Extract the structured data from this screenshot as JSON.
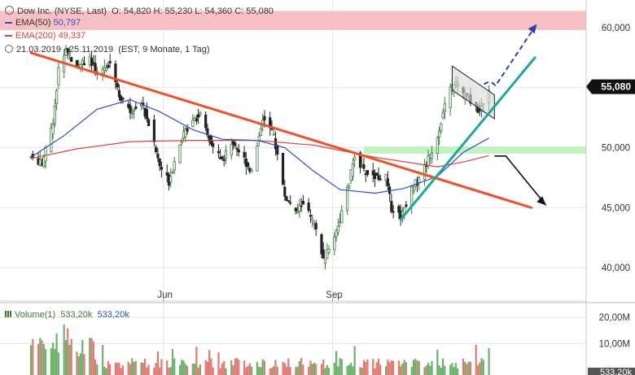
{
  "header": {
    "instrument": "Dow Inc. (NYSE, Last)",
    "ohlc": "O: 54,820  H: 55,230  L: 54,360  C: 55,080",
    "ema50_label": "EMA(50)",
    "ema50_value": "50,797",
    "ema200_label": "EMA(200)",
    "ema200_value": "49,337",
    "period": "21.03.2019 - 25.11.2019",
    "period_info": "(EST, 9 Monate, 1 Tag)"
  },
  "volume_panel": {
    "label": "Volume(1)",
    "value_green": "533,20k",
    "value_blue": "533,20k",
    "last_tag": "533,20k"
  },
  "colors": {
    "up": "#3a7d3a",
    "down": "#222222",
    "ema50": "#2a4fd6",
    "ema200": "#e0403a",
    "resistance_zone": "#f8b9bd",
    "support_zone": "#b8f2b8",
    "downtrend": "#f0502a",
    "uptrend": "#1fa89a",
    "price_tag": "#111111",
    "volume_up": "#e07a72",
    "volume_down": "#6cb26c",
    "arrow_bullish": "#2a3fb8",
    "arrow_bearish": "#111111"
  },
  "chart_data": {
    "type": "candlestick",
    "title": "Dow Inc. (NYSE, Last)",
    "x_range": [
      "2019-03-21",
      "2019-11-25"
    ],
    "x_ticks": [
      "Jun",
      "Sep"
    ],
    "y_range": [
      37.5,
      62.0
    ],
    "y_ticks": [
      "40,000",
      "45,000",
      "50,000",
      "55,000",
      "60,000"
    ],
    "y_tick_values": [
      40,
      45,
      50,
      55,
      60
    ],
    "last_price_label": "55,080",
    "last_price": 55.08,
    "volume_ticks": [
      "10,00M",
      "20,00M"
    ],
    "volume_tick_values": [
      10,
      20
    ],
    "price_series_points": [
      {
        "x": "2019-03-21",
        "y": 49.2
      },
      {
        "x": "2019-03-27",
        "y": 48.6
      },
      {
        "x": "2019-04-02",
        "y": 52.0
      },
      {
        "x": "2019-04-05",
        "y": 56.5
      },
      {
        "x": "2019-04-09",
        "y": 58.2
      },
      {
        "x": "2019-04-15",
        "y": 56.8
      },
      {
        "x": "2019-04-22",
        "y": 57.5
      },
      {
        "x": "2019-04-26",
        "y": 56.0
      },
      {
        "x": "2019-05-03",
        "y": 57.2
      },
      {
        "x": "2019-05-09",
        "y": 54.0
      },
      {
        "x": "2019-05-14",
        "y": 53.0
      },
      {
        "x": "2019-05-20",
        "y": 53.8
      },
      {
        "x": "2019-05-24",
        "y": 52.0
      },
      {
        "x": "2019-05-30",
        "y": 48.5
      },
      {
        "x": "2019-06-04",
        "y": 47.2
      },
      {
        "x": "2019-06-10",
        "y": 50.5
      },
      {
        "x": "2019-06-17",
        "y": 52.5
      },
      {
        "x": "2019-06-21",
        "y": 52.6
      },
      {
        "x": "2019-06-27",
        "y": 50.2
      },
      {
        "x": "2019-07-03",
        "y": 49.0
      },
      {
        "x": "2019-07-09",
        "y": 50.5
      },
      {
        "x": "2019-07-15",
        "y": 49.0
      },
      {
        "x": "2019-07-19",
        "y": 48.0
      },
      {
        "x": "2019-07-25",
        "y": 52.5
      },
      {
        "x": "2019-07-31",
        "y": 51.0
      },
      {
        "x": "2019-08-06",
        "y": 46.0
      },
      {
        "x": "2019-08-12",
        "y": 44.5
      },
      {
        "x": "2019-08-16",
        "y": 45.5
      },
      {
        "x": "2019-08-22",
        "y": 43.5
      },
      {
        "x": "2019-08-27",
        "y": 40.6
      },
      {
        "x": "2019-08-30",
        "y": 41.5
      },
      {
        "x": "2019-09-05",
        "y": 44.0
      },
      {
        "x": "2019-09-10",
        "y": 47.0
      },
      {
        "x": "2019-09-13",
        "y": 49.5
      },
      {
        "x": "2019-09-18",
        "y": 48.0
      },
      {
        "x": "2019-09-24",
        "y": 47.6
      },
      {
        "x": "2019-09-30",
        "y": 47.5
      },
      {
        "x": "2019-10-03",
        "y": 45.0
      },
      {
        "x": "2019-10-08",
        "y": 44.3
      },
      {
        "x": "2019-10-14",
        "y": 46.5
      },
      {
        "x": "2019-10-18",
        "y": 47.5
      },
      {
        "x": "2019-10-23",
        "y": 49.0
      },
      {
        "x": "2019-10-28",
        "y": 51.0
      },
      {
        "x": "2019-11-01",
        "y": 53.5
      },
      {
        "x": "2019-11-06",
        "y": 55.5
      },
      {
        "x": "2019-11-11",
        "y": 54.5
      },
      {
        "x": "2019-11-15",
        "y": 54.0
      },
      {
        "x": "2019-11-20",
        "y": 53.0
      },
      {
        "x": "2019-11-25",
        "y": 55.08
      }
    ],
    "ema50_points": [
      {
        "x": "2019-03-21",
        "y": 49.2
      },
      {
        "x": "2019-04-08",
        "y": 51.0
      },
      {
        "x": "2019-04-26",
        "y": 53.2
      },
      {
        "x": "2019-05-14",
        "y": 54.0
      },
      {
        "x": "2019-05-30",
        "y": 53.0
      },
      {
        "x": "2019-06-17",
        "y": 51.5
      },
      {
        "x": "2019-07-03",
        "y": 50.7
      },
      {
        "x": "2019-07-22",
        "y": 50.6
      },
      {
        "x": "2019-08-06",
        "y": 50.0
      },
      {
        "x": "2019-08-22",
        "y": 48.0
      },
      {
        "x": "2019-09-05",
        "y": 46.5
      },
      {
        "x": "2019-09-24",
        "y": 46.2
      },
      {
        "x": "2019-10-10",
        "y": 46.6
      },
      {
        "x": "2019-10-28",
        "y": 47.6
      },
      {
        "x": "2019-11-11",
        "y": 49.6
      },
      {
        "x": "2019-11-25",
        "y": 50.797
      }
    ],
    "ema200_points": [
      {
        "x": "2019-03-21",
        "y": 49.1
      },
      {
        "x": "2019-04-15",
        "y": 49.9
      },
      {
        "x": "2019-05-14",
        "y": 50.5
      },
      {
        "x": "2019-06-17",
        "y": 50.6
      },
      {
        "x": "2019-07-22",
        "y": 50.6
      },
      {
        "x": "2019-08-22",
        "y": 50.2
      },
      {
        "x": "2019-09-24",
        "y": 49.2
      },
      {
        "x": "2019-10-28",
        "y": 48.4
      },
      {
        "x": "2019-11-11",
        "y": 48.8
      },
      {
        "x": "2019-11-25",
        "y": 49.337
      }
    ],
    "zones": [
      {
        "name": "resistance",
        "y_low": 59.8,
        "y_high": 61.4
      },
      {
        "name": "support",
        "y_low": 49.5,
        "y_high": 50.1
      }
    ],
    "trendlines": [
      {
        "name": "downtrend",
        "from": {
          "x": "2019-03-21",
          "y": 57.9
        },
        "to": {
          "x": "2019-12-18",
          "y": 45.0
        }
      },
      {
        "name": "uptrend",
        "from": {
          "x": "2019-10-08",
          "y": 44.0
        },
        "to": {
          "x": "2019-12-20",
          "y": 57.5
        }
      }
    ],
    "projection_arrows": [
      {
        "name": "bullish",
        "from": {
          "x": "2019-11-25",
          "y": 55.08
        },
        "to": {
          "x": "2019-12-21",
          "y": 60.3
        }
      },
      {
        "name": "bearish",
        "from": {
          "x": "2019-11-28",
          "y": 49.3
        },
        "to": {
          "x": "2019-12-26",
          "y": 45.2
        }
      }
    ]
  }
}
